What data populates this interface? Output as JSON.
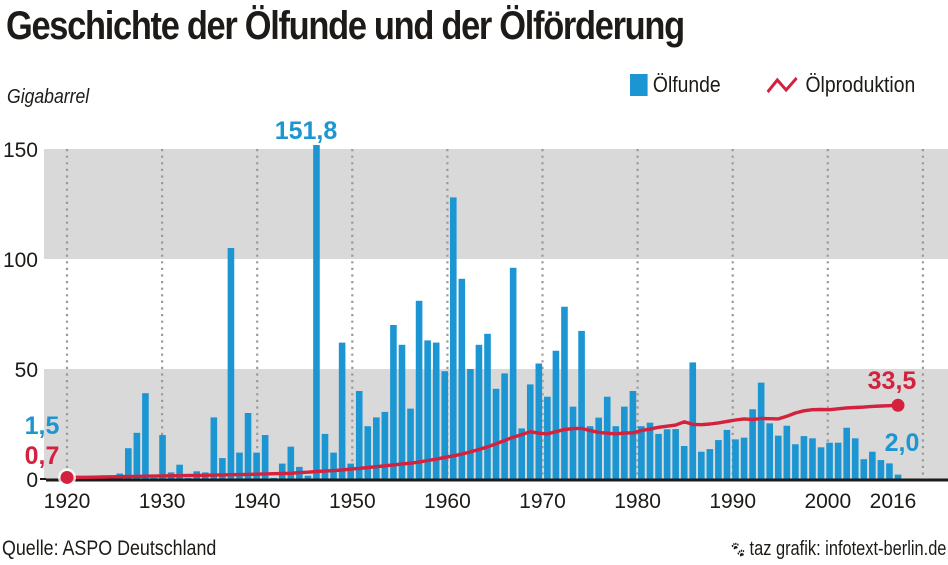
{
  "header": {
    "title": "Geschichte der Ölfunde und der Ölförderung",
    "unit_label": "Gigabarrel"
  },
  "legend": {
    "bars_label": "Ölfunde",
    "line_label": "Ölproduktion",
    "position": "top-right"
  },
  "footer": {
    "source": "Quelle: ASPO Deutschland",
    "credit": "taz grafik: infotext-berlin.de"
  },
  "colors": {
    "bars": "#1b96d2",
    "line": "#d4213d",
    "band": "#d9d9d9",
    "gridline": "#9a9a9a",
    "axis": "#1d1a17"
  },
  "chart_data": {
    "type": "bar",
    "title": "Geschichte der Ölfunde und der Ölförderung",
    "xlabel": "",
    "ylabel": "Gigabarrel",
    "ylim": [
      0,
      150
    ],
    "yticks": [
      0,
      50,
      100,
      150
    ],
    "xticks": [
      1920,
      1930,
      1940,
      1950,
      1960,
      1970,
      1980,
      1990,
      2000,
      2016
    ],
    "grid": "vertical dotted lines per decade 1920-2010, alternating horizontal bands",
    "legend_position": "top-right",
    "x_start": 1920,
    "x_end": 2016,
    "series": [
      {
        "name": "Ölfunde",
        "kind": "bar",
        "values": [
          1.5,
          0.3,
          0.3,
          0.3,
          1.5,
          2.5,
          14,
          21,
          39,
          0.5,
          20,
          3,
          6.5,
          0.5,
          3.5,
          3,
          28,
          9.5,
          105,
          12,
          30,
          12,
          20,
          0.5,
          7,
          14.7,
          5.5,
          1.5,
          151.8,
          20.5,
          12,
          62,
          7,
          40,
          24,
          28,
          30.5,
          70,
          61,
          32,
          81,
          63,
          62,
          49,
          128,
          91,
          50,
          61,
          66,
          41,
          48,
          96,
          23,
          43,
          52.5,
          37.4,
          58.3,
          78.3,
          32.9,
          67.3,
          24,
          27.9,
          37.4,
          24,
          32.9,
          40,
          24,
          25.6,
          20.5,
          22.6,
          22.7,
          15,
          53,
          12.4,
          13.6,
          17.7,
          22.3,
          18,
          18.8,
          31.7,
          43.8,
          25.3,
          19.7,
          24.2,
          15.8,
          19.5,
          18.5,
          14.4,
          16.5,
          16.5,
          23.3,
          18.5,
          9,
          12.4,
          8.6,
          7.1,
          2.0
        ]
      },
      {
        "name": "Ölproduktion",
        "kind": "line",
        "values": [
          0.7,
          0.77,
          0.84,
          0.91,
          0.98,
          1.05,
          1.12,
          1.19,
          1.26,
          1.33,
          1.4,
          1.46,
          1.52,
          1.58,
          1.64,
          1.7,
          1.78,
          1.86,
          1.94,
          2.02,
          2.1,
          2.2,
          2.3,
          2.4,
          2.5,
          2.6,
          2.9,
          3.1,
          3.4,
          3.6,
          3.8,
          4.1,
          4.5,
          4.8,
          5.2,
          5.6,
          6.0,
          6.4,
          6.8,
          7.2,
          7.7,
          8.4,
          9.0,
          9.8,
          10.5,
          11.3,
          12.3,
          13.4,
          14.6,
          16.0,
          17.5,
          19.0,
          20.2,
          21.5,
          20.8,
          20.5,
          21.5,
          22.5,
          22.9,
          23.0,
          22.0,
          21.2,
          20.8,
          20.5,
          20.9,
          21.0,
          22.0,
          22.7,
          23.5,
          24.0,
          24.5,
          26.0,
          24.8,
          24.7,
          25.0,
          25.5,
          26.2,
          26.8,
          27.3,
          27.0,
          27.5,
          27.4,
          27.3,
          28.5,
          30.0,
          31.0,
          31.5,
          31.6,
          31.5,
          31.9,
          32.3,
          32.5,
          32.7,
          33.0,
          33.2,
          33.3,
          33.5
        ]
      }
    ],
    "annotations": [
      {
        "series": "Ölfunde",
        "year": 1920,
        "text": "1,5"
      },
      {
        "series": "Ölproduktion",
        "year": 1920,
        "text": "0,7"
      },
      {
        "series": "Ölfunde",
        "year": 1948,
        "text": "151,8"
      },
      {
        "series": "Ölproduktion",
        "year": 2016,
        "text": "33,5"
      },
      {
        "series": "Ölfunde",
        "year": 2016,
        "text": "2,0"
      }
    ]
  }
}
